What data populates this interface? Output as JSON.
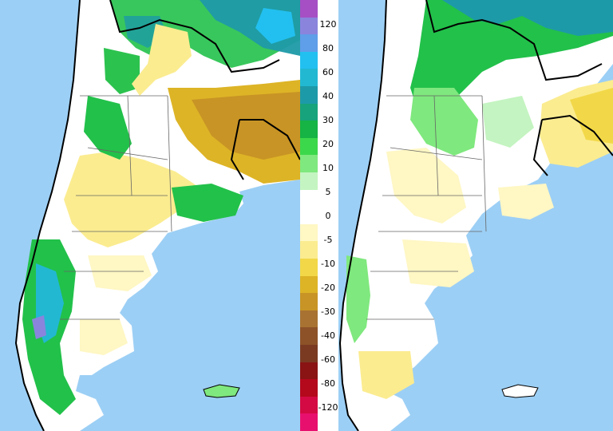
{
  "maps": {
    "ocean_color": "#9ccff5",
    "land_color": "#ffffff",
    "border_color": "#000000"
  },
  "legend": {
    "labels": [
      "120",
      "80",
      "60",
      "40",
      "30",
      "20",
      "10",
      "5",
      "0",
      "-5",
      "-10",
      "-20",
      "-30",
      "-40",
      "-60",
      "-80",
      "-120"
    ],
    "colors": [
      "#a64fc4",
      "#8a84dd",
      "#5f9ee8",
      "#22c0f0",
      "#22b8d2",
      "#1d9aa8",
      "#17a37b",
      "#15b444",
      "#3cd84c",
      "#7fe87e",
      "#c4f4c1",
      "#ffffff",
      "#ffffff",
      "#fff7c4",
      "#fbec90",
      "#f2d848",
      "#ddb426",
      "#c89425",
      "#a87232",
      "#8d5228",
      "#7a3a22",
      "#8a1414",
      "#b4081c",
      "#d40a44",
      "#e8106e"
    ]
  }
}
